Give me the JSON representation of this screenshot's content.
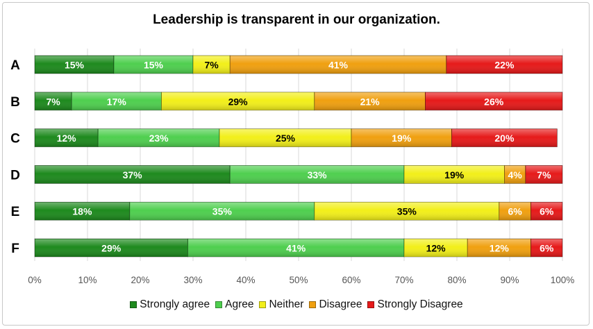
{
  "chart_data": {
    "type": "bar",
    "orientation": "horizontal-stacked",
    "title": "Leadership is transparent in our organization.",
    "categories": [
      "A",
      "B",
      "C",
      "D",
      "E",
      "F"
    ],
    "series": [
      {
        "name": "Strongly agree",
        "color": "#1e8a1e",
        "label_color": "#ffffff",
        "values": [
          15,
          7,
          12,
          37,
          18,
          29
        ]
      },
      {
        "name": "Agree",
        "color": "#4fcf4f",
        "label_color": "#ffffff",
        "values": [
          15,
          17,
          23,
          33,
          35,
          41
        ]
      },
      {
        "name": "Neither",
        "color": "#f2ef1a",
        "label_color": "#000000",
        "values": [
          7,
          29,
          25,
          19,
          35,
          12
        ]
      },
      {
        "name": "Disagree",
        "color": "#f0a010",
        "label_color": "#ffffff",
        "values": [
          41,
          21,
          19,
          4,
          6,
          12
        ]
      },
      {
        "name": "Strongly Disagree",
        "color": "#e61a1a",
        "label_color": "#ffffff",
        "values": [
          22,
          26,
          20,
          7,
          6,
          6
        ]
      }
    ],
    "xlim": [
      0,
      100
    ],
    "xticks": [
      "0%",
      "10%",
      "20%",
      "30%",
      "40%",
      "50%",
      "60%",
      "70%",
      "80%",
      "90%",
      "100%"
    ],
    "gridlines": "vertical",
    "legend_position": "bottom",
    "xlabel": "",
    "ylabel": ""
  }
}
